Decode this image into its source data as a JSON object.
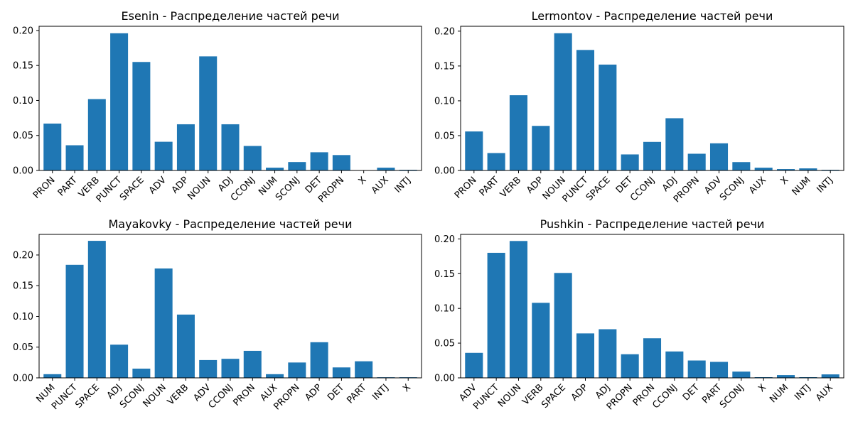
{
  "chart_data": [
    {
      "type": "bar",
      "title": "Esenin - Распределение частей речи",
      "categories": [
        "PRON",
        "PART",
        "VERB",
        "PUNCT",
        "SPACE",
        "ADV",
        "ADP",
        "NOUN",
        "ADJ",
        "CCONJ",
        "NUM",
        "SCONJ",
        "DET",
        "PROPN",
        "X",
        "AUX",
        "INTJ"
      ],
      "values": [
        0.067,
        0.036,
        0.102,
        0.196,
        0.155,
        0.041,
        0.066,
        0.163,
        0.066,
        0.035,
        0.004,
        0.012,
        0.026,
        0.022,
        0.0,
        0.004,
        0.001
      ],
      "yticks": [
        "0.00",
        "0.05",
        "0.10",
        "0.15",
        "0.20"
      ],
      "ylim": [
        0,
        0.206
      ],
      "color": "#1f77b4"
    },
    {
      "type": "bar",
      "title": "Lermontov - Распределение частей речи",
      "categories": [
        "PRON",
        "PART",
        "VERB",
        "ADP",
        "NOUN",
        "PUNCT",
        "SPACE",
        "DET",
        "CCONJ",
        "ADJ",
        "PROPN",
        "ADV",
        "SCONJ",
        "AUX",
        "X",
        "NUM",
        "INTJ"
      ],
      "values": [
        0.056,
        0.025,
        0.108,
        0.064,
        0.197,
        0.173,
        0.152,
        0.023,
        0.041,
        0.075,
        0.024,
        0.039,
        0.012,
        0.004,
        0.002,
        0.003,
        0.001
      ],
      "yticks": [
        "0.00",
        "0.05",
        "0.10",
        "0.15",
        "0.20"
      ],
      "ylim": [
        0,
        0.207
      ],
      "color": "#1f77b4"
    },
    {
      "type": "bar",
      "title": "Mayakovky - Распределение частей речи",
      "categories": [
        "NUM",
        "PUNCT",
        "SPACE",
        "ADJ",
        "SCONJ",
        "NOUN",
        "VERB",
        "ADV",
        "CCONJ",
        "PRON",
        "AUX",
        "PROPN",
        "ADP",
        "DET",
        "PART",
        "INTJ",
        "X"
      ],
      "values": [
        0.006,
        0.184,
        0.223,
        0.054,
        0.015,
        0.178,
        0.103,
        0.029,
        0.031,
        0.044,
        0.006,
        0.025,
        0.058,
        0.017,
        0.027,
        0.001,
        0.001
      ],
      "yticks": [
        "0.00",
        "0.05",
        "0.10",
        "0.15",
        "0.20"
      ],
      "ylim": [
        0,
        0.2335
      ],
      "color": "#1f77b4"
    },
    {
      "type": "bar",
      "title": "Pushkin - Распределение частей речи",
      "categories": [
        "ADV",
        "PUNCT",
        "NOUN",
        "VERB",
        "SPACE",
        "ADP",
        "ADJ",
        "PROPN",
        "PRON",
        "CCONJ",
        "DET",
        "PART",
        "SCONJ",
        "X",
        "NUM",
        "INTJ",
        "AUX"
      ],
      "values": [
        0.036,
        0.18,
        0.197,
        0.108,
        0.151,
        0.064,
        0.07,
        0.034,
        0.057,
        0.038,
        0.025,
        0.023,
        0.009,
        0.001,
        0.004,
        0.001,
        0.005
      ],
      "yticks": [
        "0.00",
        "0.05",
        "0.10",
        "0.15",
        "0.20"
      ],
      "ylim": [
        0,
        0.2065
      ],
      "color": "#1f77b4"
    }
  ]
}
